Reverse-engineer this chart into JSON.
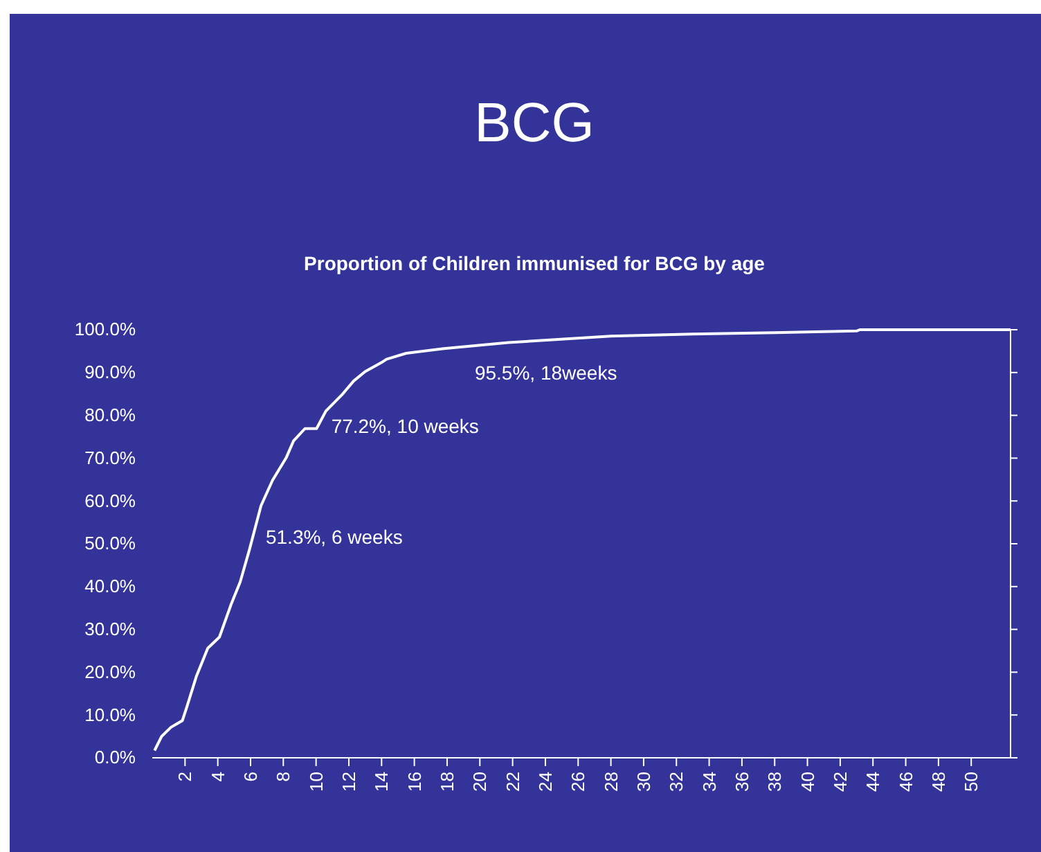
{
  "chart_data": {
    "type": "line",
    "title": "BCG",
    "subtitle": "Proportion of Children immunised for BCG by age",
    "x": [
      0.14,
      0.57,
      1.13,
      1.84,
      2.12,
      2.69,
      3.39,
      4.1,
      4.8,
      5.37,
      5.93,
      6.64,
      7.34,
      8.19,
      8.62,
      9.32,
      10.03,
      10.6,
      11.58,
      12.29,
      12.99,
      13.98,
      14.3,
      15.5,
      17.8,
      21.75,
      24.6,
      28,
      33,
      38,
      43,
      43.2,
      52.4
    ],
    "series": [
      {
        "color": "#ffffff",
        "values": [
          1.7,
          5,
          7.1,
          8.7,
          12,
          19,
          25.6,
          28.2,
          35.7,
          41.1,
          48.6,
          58.9,
          64.8,
          70.2,
          74,
          76.9,
          76.9,
          81,
          84.8,
          88,
          90.2,
          92.3,
          93.1,
          94.5,
          95.6,
          97,
          97.7,
          98.5,
          99,
          99.3,
          99.7,
          100,
          100
        ]
      }
    ],
    "xlim": [
      0,
      52.4
    ],
    "xticks": [
      2,
      4,
      6,
      8,
      10,
      12,
      14,
      16,
      18,
      20,
      22,
      24,
      26,
      28,
      30,
      32,
      34,
      36,
      38,
      40,
      42,
      44,
      46,
      48,
      50
    ],
    "ylim": [
      0,
      100
    ],
    "yticks": [
      {
        "value": 0,
        "label": "0.0%"
      },
      {
        "value": 10,
        "label": "10.0%"
      },
      {
        "value": 20,
        "label": "20.0%"
      },
      {
        "value": 30,
        "label": "30.0%"
      },
      {
        "value": 40,
        "label": "40.0%"
      },
      {
        "value": 50,
        "label": "50.0%"
      },
      {
        "value": 60,
        "label": "60.0%"
      },
      {
        "value": 70,
        "label": "70.0%"
      },
      {
        "value": 80,
        "label": "80.0%"
      },
      {
        "value": 90,
        "label": "90.0%"
      },
      {
        "value": 100,
        "label": "100.0%"
      }
    ],
    "annotations": [
      {
        "text": "51.3%, 6 weeks",
        "x": 6,
        "y": 51.3
      },
      {
        "text": "77.2%, 10 weeks",
        "x": 10,
        "y": 77.2
      },
      {
        "text": "95.5%, 18weeks",
        "x": 18,
        "y": 95.5
      }
    ],
    "line_style": "solid"
  }
}
